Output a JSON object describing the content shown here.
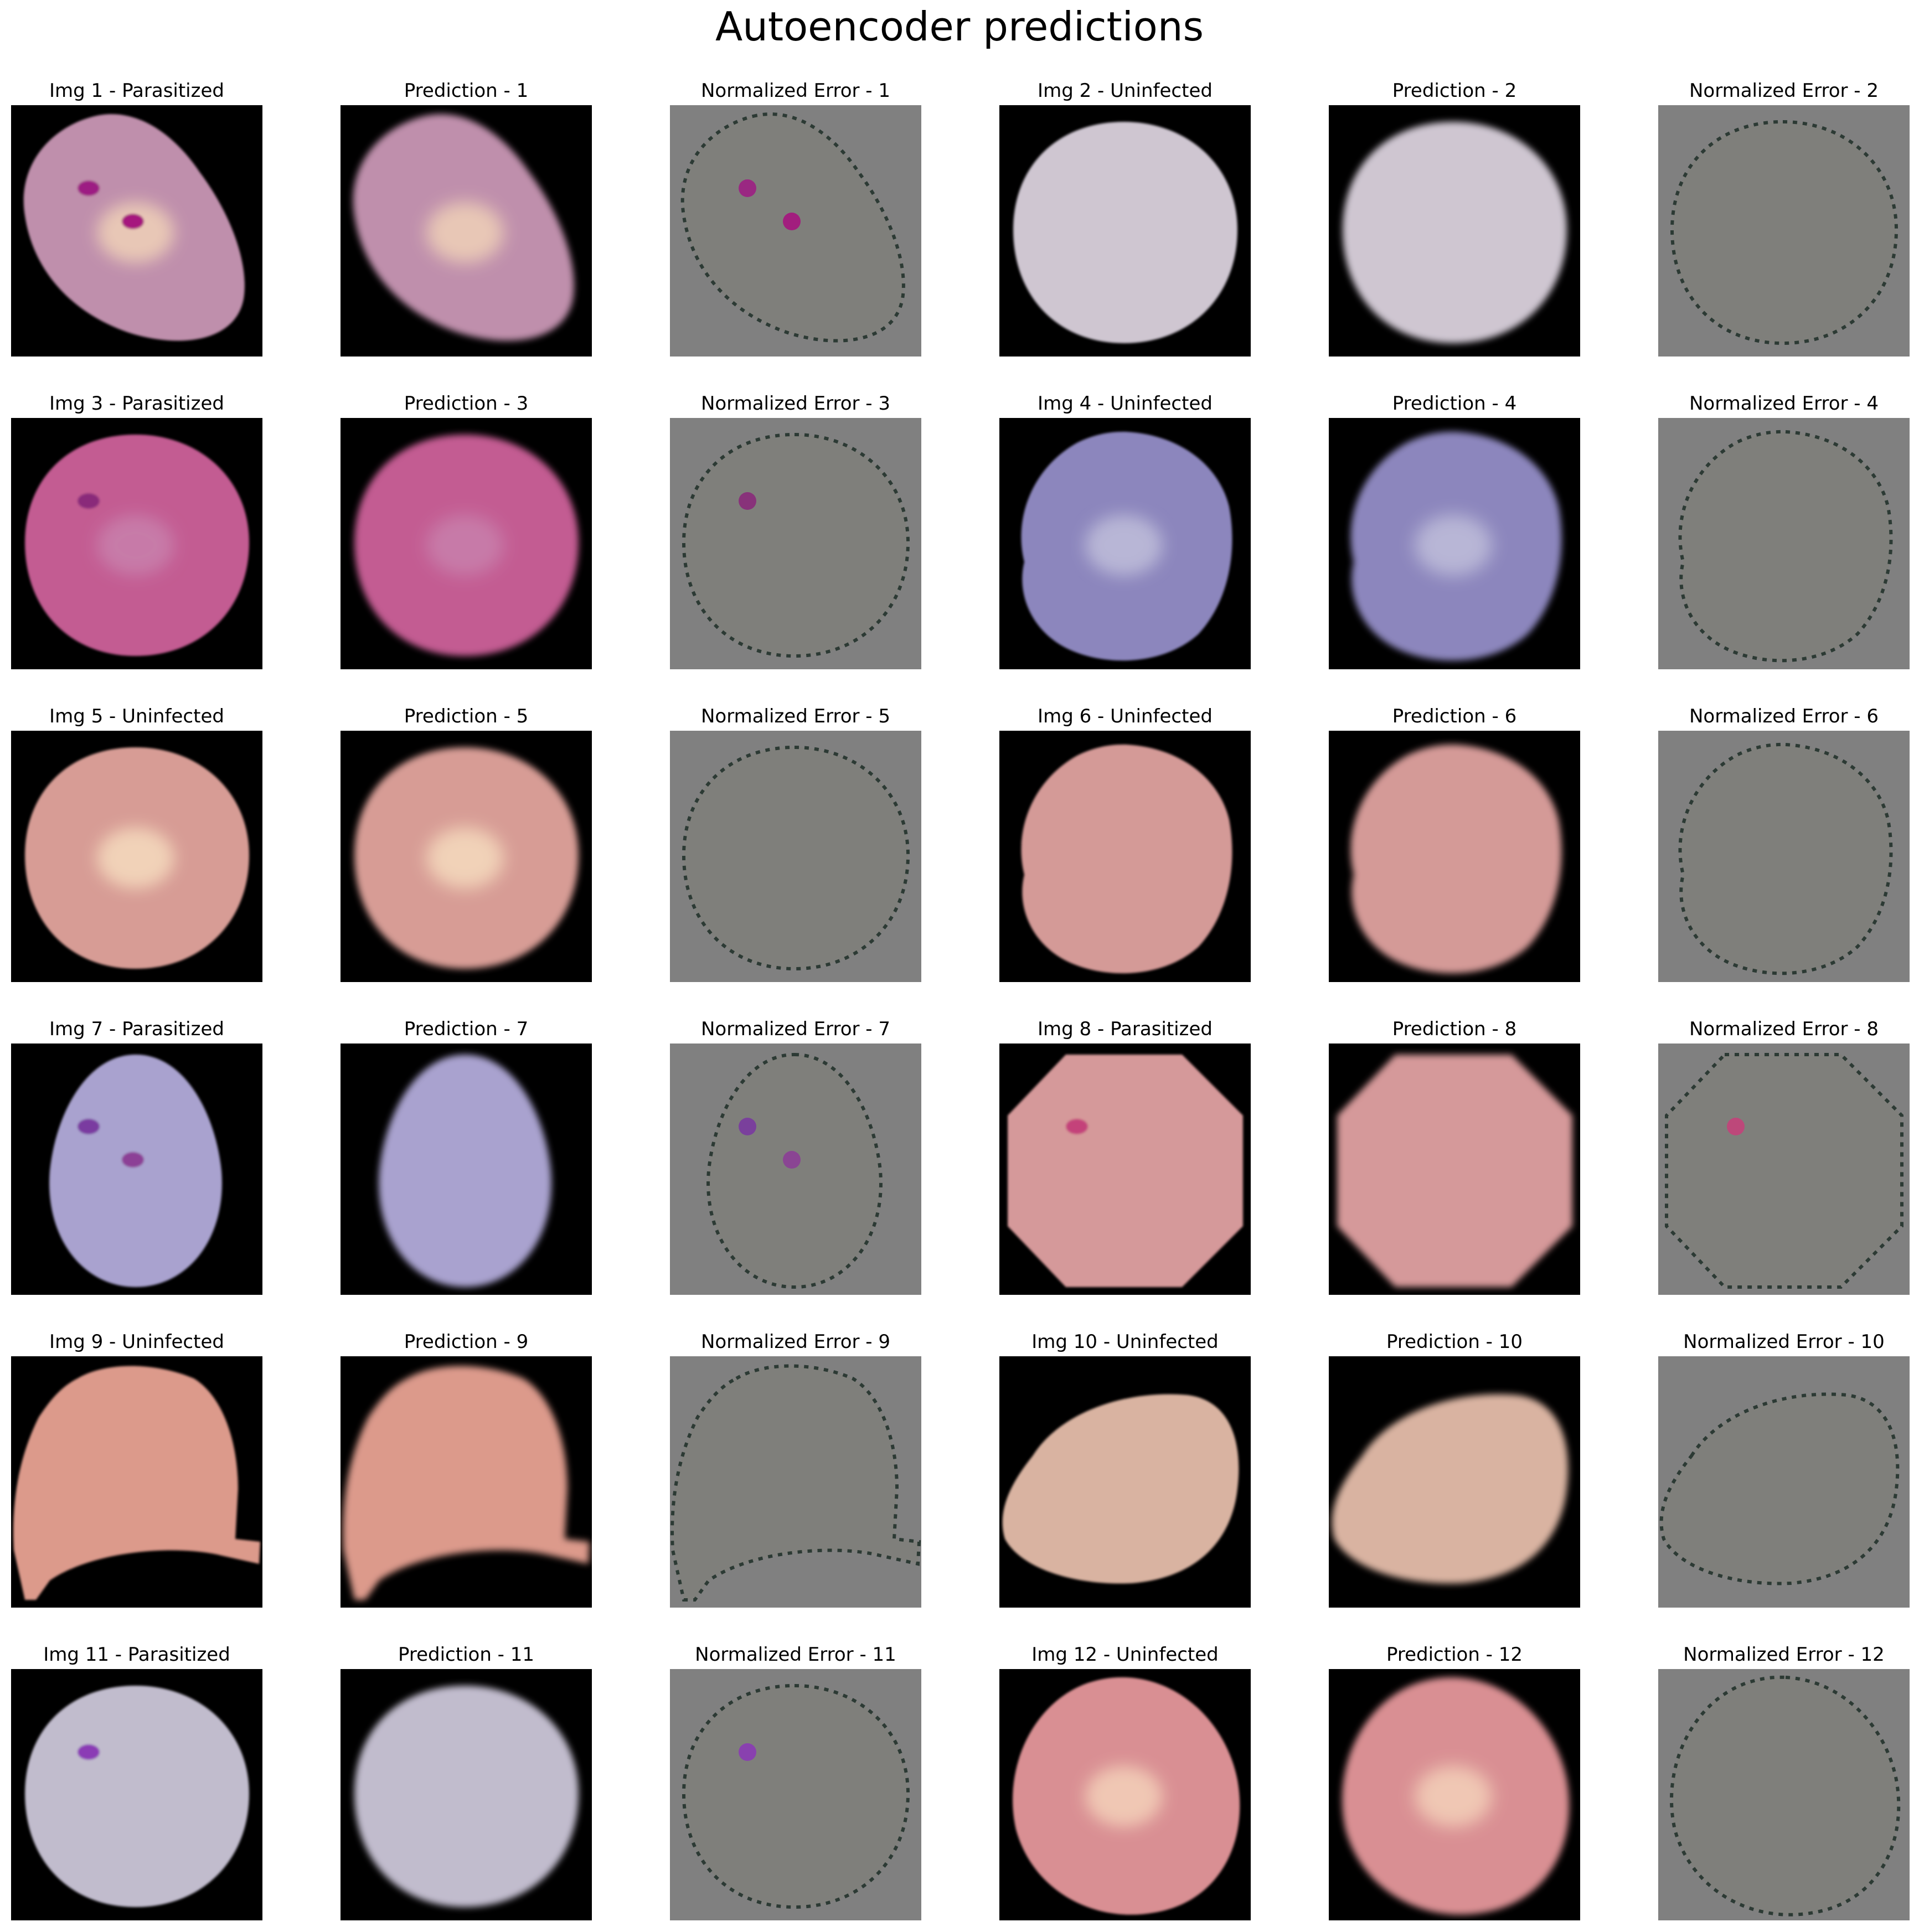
{
  "figure": {
    "title": "Autoencoder predictions"
  },
  "colors": {
    "original_background": "#000000",
    "error_background": "#808080",
    "page_background": "#ffffff"
  },
  "panel_kinds": [
    "original",
    "prediction",
    "error"
  ],
  "samples": [
    {
      "original_title": "Img 1 - Parasitized",
      "prediction_title": "Prediction - 1",
      "error_title": "Normalized Error - 1",
      "label": "Parasitized",
      "cell_color": "#bf8fac",
      "shape": "tilted-oval",
      "feature_color": "#e8c7b6",
      "spot_colors": [
        "#9d1f83",
        "#a6147e"
      ]
    },
    {
      "original_title": "Img 2 - Uninfected",
      "prediction_title": "Prediction - 2",
      "error_title": "Normalized Error - 2",
      "label": "Uninfected",
      "cell_color": "#cfc6d1",
      "shape": "round",
      "feature_color": "",
      "spot_colors": []
    },
    {
      "original_title": "Img 3 - Parasitized",
      "prediction_title": "Prediction - 3",
      "error_title": "Normalized Error - 3",
      "label": "Parasitized",
      "cell_color": "#c35c92",
      "shape": "round",
      "feature_color": "#c77aa8",
      "spot_colors": [
        "#8a2a7a"
      ]
    },
    {
      "original_title": "Img 4 - Uninfected",
      "prediction_title": "Prediction - 4",
      "error_title": "Normalized Error - 4",
      "label": "Uninfected",
      "cell_color": "#8c86bd",
      "shape": "lobed",
      "feature_color": "#b8b6d6",
      "spot_colors": []
    },
    {
      "original_title": "Img 5 - Uninfected",
      "prediction_title": "Prediction - 5",
      "error_title": "Normalized Error - 5",
      "label": "Uninfected",
      "cell_color": "#d79c95",
      "shape": "round",
      "feature_color": "#f1d2b8",
      "spot_colors": []
    },
    {
      "original_title": "Img 6 - Uninfected",
      "prediction_title": "Prediction - 6",
      "error_title": "Normalized Error - 6",
      "label": "Uninfected",
      "cell_color": "#d49a97",
      "shape": "lobed",
      "feature_color": "",
      "spot_colors": []
    },
    {
      "original_title": "Img 7 - Parasitized",
      "prediction_title": "Prediction - 7",
      "error_title": "Normalized Error - 7",
      "label": "Parasitized",
      "cell_color": "#a9a2cf",
      "shape": "tall-oval",
      "feature_color": "",
      "spot_colors": [
        "#7a3aa0",
        "#8c3f96"
      ]
    },
    {
      "original_title": "Img 8 - Parasitized",
      "prediction_title": "Prediction - 8",
      "error_title": "Normalized Error - 8",
      "label": "Parasitized",
      "cell_color": "#d5999a",
      "shape": "octagon",
      "feature_color": "",
      "spot_colors": [
        "#c4437a"
      ]
    },
    {
      "original_title": "Img 9 - Uninfected",
      "prediction_title": "Prediction - 9",
      "error_title": "Normalized Error - 9",
      "label": "Uninfected",
      "cell_color": "#dc9a8b",
      "shape": "dome",
      "feature_color": "",
      "spot_colors": []
    },
    {
      "original_title": "Img 10 - Uninfected",
      "prediction_title": "Prediction - 10",
      "error_title": "Normalized Error - 10",
      "label": "Uninfected",
      "cell_color": "#d9b3a1",
      "shape": "egg",
      "feature_color": "",
      "spot_colors": []
    },
    {
      "original_title": "Img 11 - Parasitized",
      "prediction_title": "Prediction - 11",
      "error_title": "Normalized Error - 11",
      "label": "Parasitized",
      "cell_color": "#c1bccd",
      "shape": "round",
      "feature_color": "",
      "spot_colors": [
        "#8b3bb5"
      ]
    },
    {
      "original_title": "Img 12 - Uninfected",
      "prediction_title": "Prediction - 12",
      "error_title": "Normalized Error - 12",
      "label": "Uninfected",
      "cell_color": "#d98f93",
      "shape": "tilted-round",
      "feature_color": "#f0c7b4",
      "spot_colors": []
    }
  ]
}
